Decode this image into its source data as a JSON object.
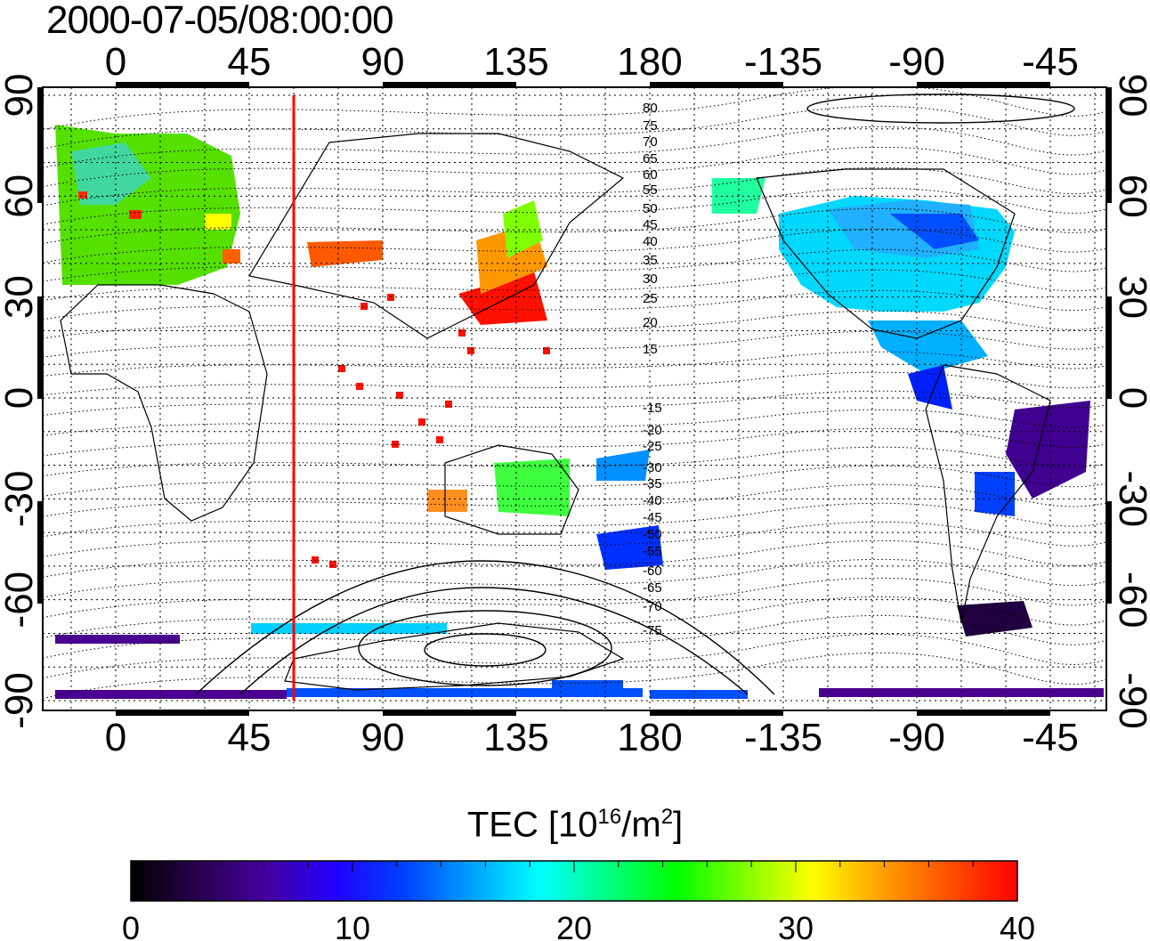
{
  "title": "2000-07-05/08:00:00",
  "map": {
    "x_ticks": [
      "0",
      "45",
      "90",
      "135",
      "180",
      "-135",
      "-90",
      "-45"
    ],
    "y_ticks": [
      "90",
      "60",
      "30",
      "0",
      "-30",
      "-60",
      "-90"
    ],
    "contour_labels": [
      "80",
      "75",
      "70",
      "65",
      "60",
      "55",
      "50",
      "45",
      "40",
      "35",
      "30",
      "25",
      "20",
      "15",
      "-15",
      "-20",
      "-25",
      "-30",
      "-35",
      "-40",
      "-45",
      "-50",
      "-55",
      "-60",
      "-65",
      "-70",
      "-75"
    ],
    "marker_longitude": 60,
    "marker_color": "#ff0000"
  },
  "colorbar": {
    "title_main": "TEC  [10",
    "title_exp": "16",
    "title_unit": "/m",
    "title_exp2": "2",
    "title_close": "]",
    "ticks": [
      "0",
      "10",
      "20",
      "30",
      "40"
    ],
    "min": 0,
    "max": 40,
    "colors": [
      "#000000",
      "#2a0050",
      "#4400a0",
      "#2200ff",
      "#0040ff",
      "#00a0ff",
      "#00ffff",
      "#00ff80",
      "#00ff00",
      "#80ff00",
      "#ffff00",
      "#ffa000",
      "#ff5000",
      "#ff0000"
    ]
  }
}
